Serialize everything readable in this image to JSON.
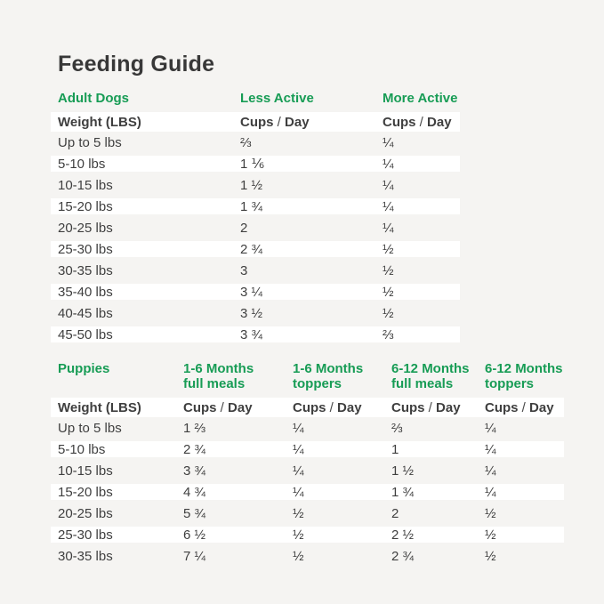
{
  "page": {
    "title": "Feeding Guide"
  },
  "colors": {
    "background": "#f5f4f2",
    "row_stripe": "#ffffff",
    "accent_green": "#179c55",
    "text": "#3f3f3f",
    "title": "#383838"
  },
  "tables": [
    {
      "id": "adult-dogs",
      "section_label": "Adult Dogs",
      "weight_header": "Weight (LBS)",
      "unit_header": {
        "cups": "Cups",
        "slash": "/",
        "day": "Day"
      },
      "column_headers": [
        {
          "line1": "Less Active",
          "line2": ""
        },
        {
          "line1": "More Active",
          "line2": ""
        }
      ],
      "rows": [
        {
          "weight": "Up to 5 lbs",
          "values": [
            "⅔",
            "¼"
          ]
        },
        {
          "weight": "5-10 lbs",
          "values": [
            "1 ⅙",
            "¼"
          ]
        },
        {
          "weight": "10-15 lbs",
          "values": [
            "1 ½",
            "¼"
          ]
        },
        {
          "weight": "15-20 lbs",
          "values": [
            "1 ¾",
            "¼"
          ]
        },
        {
          "weight": "20-25 lbs",
          "values": [
            "2",
            "¼"
          ]
        },
        {
          "weight": "25-30 lbs",
          "values": [
            "2 ¾",
            "½"
          ]
        },
        {
          "weight": "30-35 lbs",
          "values": [
            "3",
            "½"
          ]
        },
        {
          "weight": "35-40 lbs",
          "values": [
            "3 ¼",
            "½"
          ]
        },
        {
          "weight": "40-45 lbs",
          "values": [
            "3 ½",
            "½"
          ]
        },
        {
          "weight": "45-50 lbs",
          "values": [
            "3 ¾",
            "⅔"
          ]
        }
      ]
    },
    {
      "id": "puppies",
      "section_label": "Puppies",
      "weight_header": "Weight (LBS)",
      "unit_header": {
        "cups": "Cups",
        "slash": "/",
        "day": "Day"
      },
      "column_headers": [
        {
          "line1": "1-6 Months",
          "line2": "full meals"
        },
        {
          "line1": "1-6 Months",
          "line2": "toppers"
        },
        {
          "line1": "6-12 Months",
          "line2": "full meals"
        },
        {
          "line1": "6-12 Months",
          "line2": "toppers"
        }
      ],
      "rows": [
        {
          "weight": "Up to 5 lbs",
          "values": [
            "1 ⅔",
            "¼",
            "⅔",
            "¼"
          ]
        },
        {
          "weight": "5-10 lbs",
          "values": [
            "2 ¾",
            "¼",
            "1",
            "¼"
          ]
        },
        {
          "weight": "10-15 lbs",
          "values": [
            "3 ¾",
            "¼",
            "1 ½",
            "¼"
          ]
        },
        {
          "weight": "15-20 lbs",
          "values": [
            "4 ¾",
            "¼",
            "1 ¾",
            "¼"
          ]
        },
        {
          "weight": "20-25 lbs",
          "values": [
            "5 ¾",
            "½",
            "2",
            "½"
          ]
        },
        {
          "weight": "25-30 lbs",
          "values": [
            "6 ½",
            "½",
            "2 ½",
            "½"
          ]
        },
        {
          "weight": "30-35 lbs",
          "values": [
            "7 ¼",
            "½",
            "2 ¾",
            "½"
          ]
        }
      ]
    }
  ]
}
